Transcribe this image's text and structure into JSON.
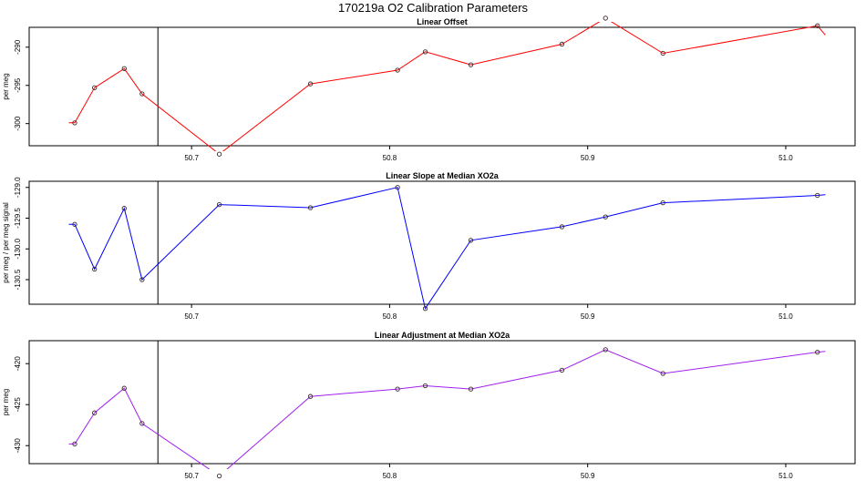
{
  "title": "170219a   O2 Calibration Parameters",
  "colors": {
    "axis": "#000000",
    "marker": "#3a2a2a",
    "vline": "#000000"
  },
  "chart_data": [
    {
      "type": "line",
      "title": "Linear Offset",
      "ylabel": "per meg",
      "color": "#ff0000",
      "xlim": [
        50.618,
        51.035
      ],
      "ylim": [
        -302.9,
        -287.4
      ],
      "xticks": [
        "50.7",
        "50.8",
        "50.9",
        "51.0"
      ],
      "yticks": [
        "-290",
        "-295",
        "-300"
      ],
      "vline_x": 50.683,
      "tail": {
        "left": [
          50.638,
          -299.9
        ],
        "right": [
          51.02,
          -288.4
        ]
      },
      "x": [
        50.641,
        50.651,
        50.666,
        50.675,
        50.714,
        50.76,
        50.804,
        50.818,
        50.841,
        50.887,
        50.909,
        50.938,
        51.016
      ],
      "y": [
        -299.9,
        -295.3,
        -292.8,
        -296.1,
        -304.0,
        -294.8,
        -293.0,
        -290.6,
        -292.3,
        -289.6,
        -286.2,
        -290.8,
        -287.2
      ]
    },
    {
      "type": "line",
      "title": "Linear Slope at Median XO2a",
      "ylabel": "per meg / per meg signal",
      "color": "#0000ff",
      "xlim": [
        50.618,
        51.035
      ],
      "ylim": [
        -130.9,
        -128.9
      ],
      "xticks": [
        "50.7",
        "50.8",
        "50.9",
        "51.0"
      ],
      "yticks": [
        "-129.0",
        "-129.5",
        "-130.0",
        "-130.5"
      ],
      "vline_x": 50.683,
      "tail": {
        "left": [
          50.638,
          -129.6
        ],
        "right": [
          51.02,
          -129.12
        ]
      },
      "x": [
        50.641,
        50.651,
        50.666,
        50.675,
        50.714,
        50.76,
        50.804,
        50.818,
        50.841,
        50.887,
        50.909,
        50.938,
        51.016
      ],
      "y": [
        -129.6,
        -130.33,
        -129.34,
        -130.5,
        -129.28,
        -129.33,
        -129.0,
        -130.97,
        -129.86,
        -129.64,
        -129.48,
        -129.25,
        -129.13
      ]
    },
    {
      "type": "line",
      "title": "Linear Adjustment at Median XO2a",
      "ylabel": "per meg",
      "color": "#a020f0",
      "xlim": [
        50.618,
        51.035
      ],
      "ylim": [
        -432.2,
        -417.2
      ],
      "xticks": [
        "50.7",
        "50.8",
        "50.9",
        "51.0"
      ],
      "yticks": [
        "-420",
        "-425",
        "-430"
      ],
      "vline_x": 50.683,
      "tail": {
        "left": [
          50.638,
          -429.8
        ],
        "right": [
          51.02,
          -418.5
        ]
      },
      "x": [
        50.641,
        50.651,
        50.666,
        50.675,
        50.714,
        50.76,
        50.804,
        50.818,
        50.841,
        50.887,
        50.909,
        50.938,
        51.016
      ],
      "y": [
        -429.8,
        -426.0,
        -423.0,
        -427.3,
        -433.7,
        -424.0,
        -423.1,
        -422.7,
        -423.1,
        -420.8,
        -418.3,
        -421.2,
        -418.6
      ]
    }
  ]
}
